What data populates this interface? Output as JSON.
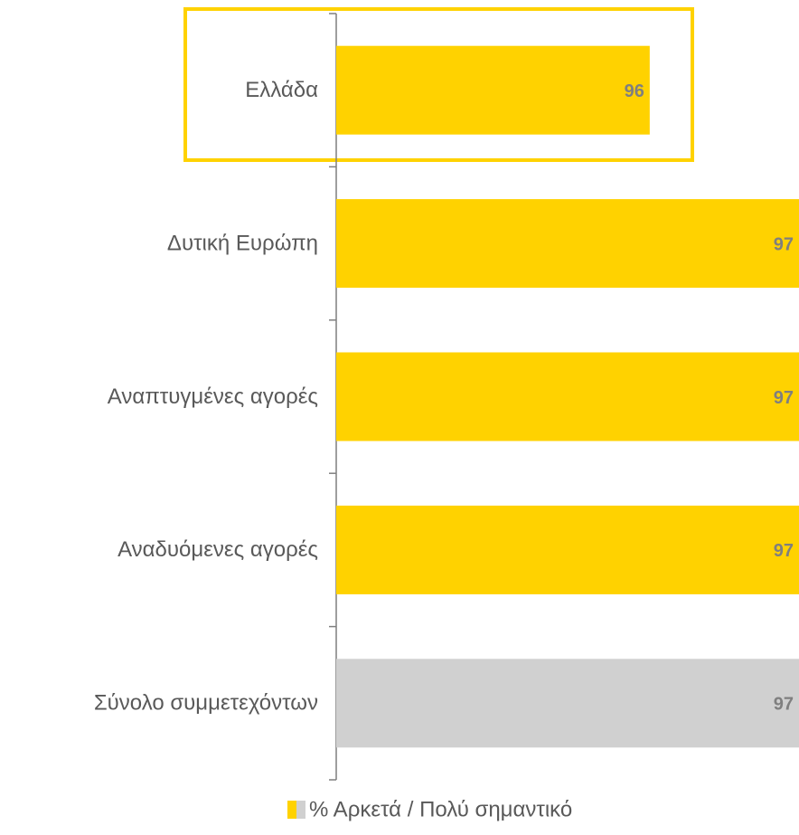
{
  "chart_data": {
    "type": "barh",
    "categories": [
      "Ελλάδα",
      "Δυτική Ευρώπη",
      "Αναπτυγμένες αγορές",
      "Αναδυόμενες αγορές",
      "Σύνολο συμμετεχόντων"
    ],
    "series": [
      {
        "name": "% Αρκετά / Πολύ σημαντικό",
        "values": [
          96,
          97,
          97,
          97,
          97
        ],
        "colors": [
          "#FFD200",
          "#FFD200",
          "#FFD200",
          "#FFD200",
          "#D0D0D0"
        ]
      }
    ],
    "xlim": [
      93.9,
      97
    ]
  }
}
